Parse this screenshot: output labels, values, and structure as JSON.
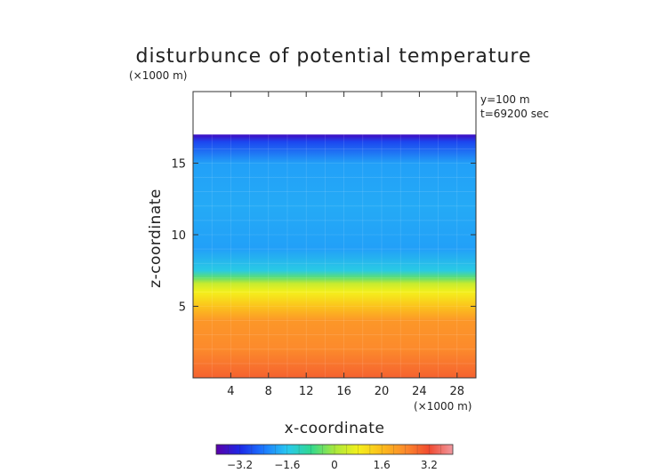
{
  "chart_data": {
    "type": "heatmap",
    "title": "disturbunce of potential temperature",
    "xlabel": "x-coordinate",
    "ylabel": "z-coordinate",
    "x_unit": "(×1000 m)",
    "y_unit": "(×1000 m)",
    "annotations": [
      "y=100 m",
      "t=69200 sec"
    ],
    "xlim": [
      0,
      30
    ],
    "ylim": [
      0,
      20
    ],
    "x_ticks": [
      4,
      8,
      12,
      16,
      20,
      24,
      28
    ],
    "y_ticks": [
      5,
      10,
      15
    ],
    "colorbar": {
      "range": [
        -4,
        4
      ],
      "ticks": [
        -3.2,
        -1.6,
        0,
        1.6,
        3.2
      ],
      "tick_labels": [
        "−3.2",
        "−1.6",
        "0",
        "1.6",
        "3.2"
      ],
      "colors": [
        "#5a00a8",
        "#1c28e6",
        "#1c78ff",
        "#28c8f0",
        "#30d890",
        "#a8e83c",
        "#f4f01c",
        "#fcbc1c",
        "#fc8a2c",
        "#f04a30",
        "#f098a0"
      ]
    },
    "field_profile": {
      "z": [
        0,
        2,
        4,
        5,
        6,
        6.6,
        7,
        7.5,
        9,
        12,
        15,
        16.5,
        16.9
      ],
      "value": [
        2.9,
        2.4,
        2.2,
        1.5,
        0.8,
        0.3,
        -0.5,
        -1.5,
        -2.0,
        -1.9,
        -2.0,
        -2.9,
        -3.6
      ]
    },
    "missing_above_z": 17
  }
}
